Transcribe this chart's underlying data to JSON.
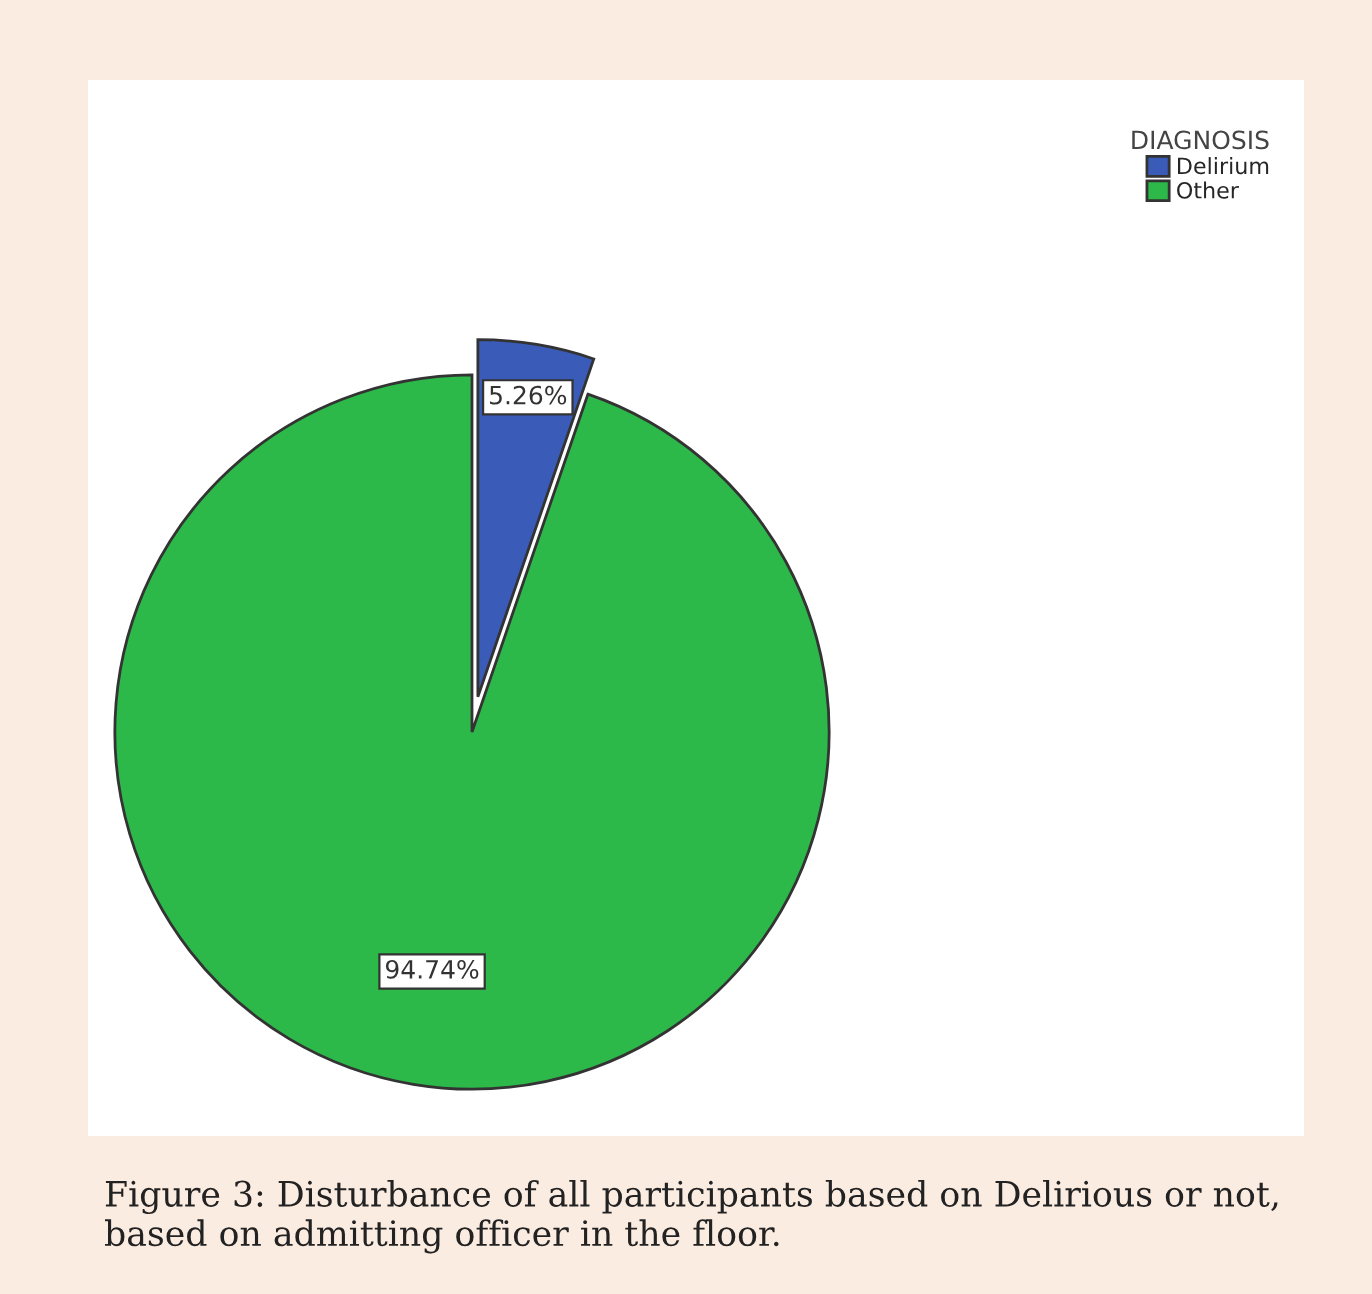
{
  "chart_data": {
    "type": "pie",
    "legend_title": "DIAGNOSIS",
    "legend": "top right",
    "categories": [
      "Delirium",
      "Other"
    ],
    "values": [
      5.26,
      94.74
    ],
    "colors": [
      "#3a5bb8",
      "#2db84a"
    ],
    "value_labels": [
      "5.26%",
      "94.74%"
    ],
    "annotations": [
      "Figure 3: Disturbance of all participants based on Delirious or not, based on admitting officer in the floor."
    ]
  }
}
